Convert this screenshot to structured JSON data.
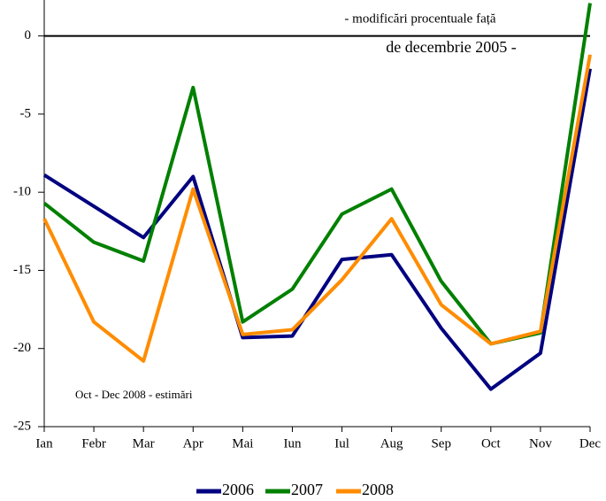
{
  "chart_data": {
    "type": "line",
    "categories": [
      "Ian",
      "Febr",
      "Mar",
      "Apr",
      "Mai",
      "Iun",
      "Iul",
      "Aug",
      "Sep",
      "Oct",
      "Nov",
      "Dec"
    ],
    "series": [
      {
        "name": "2006",
        "color": "#000080",
        "values": [
          -8.9,
          -10.9,
          -12.9,
          -9.0,
          -19.3,
          -19.2,
          -14.3,
          -14.0,
          -18.7,
          -22.6,
          -20.3,
          -2.1
        ]
      },
      {
        "name": "2007",
        "color": "#008000",
        "values": [
          -10.7,
          -13.2,
          -14.4,
          -3.3,
          -18.3,
          -16.2,
          -11.4,
          -9.8,
          -15.7,
          -19.7,
          -19.0,
          2.1
        ]
      },
      {
        "name": "2008",
        "color": "#ff8c00",
        "values": [
          -11.7,
          -18.3,
          -20.8,
          -9.8,
          -19.1,
          -18.8,
          -15.6,
          -11.7,
          -17.2,
          -19.7,
          -18.9,
          -1.2
        ]
      }
    ],
    "ylim": [
      -25,
      2.3
    ],
    "yticks": [
      0,
      -5,
      -10,
      -15,
      -20,
      -25
    ],
    "annotations": [
      "- modificări procentuale față",
      "de decembrie 2005 -",
      "Oct - Dec 2008 - estimări"
    ],
    "legend": "bottom"
  }
}
